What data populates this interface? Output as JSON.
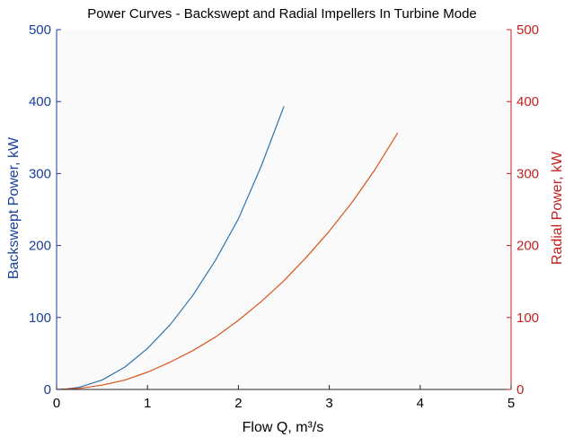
{
  "chart_data": {
    "type": "line",
    "title": "Power Curves - Backswept and Radial Impellers In Turbine Mode",
    "xlabel": "Flow Q, m³/s",
    "ylabel_left": "Backswept Power, kW",
    "ylabel_right": "Radial Power, kW",
    "xlim": [
      0,
      5
    ],
    "ylim_left": [
      0,
      500
    ],
    "ylim_right": [
      0,
      500
    ],
    "x_ticks": [
      "0",
      "1",
      "2",
      "3",
      "4",
      "5"
    ],
    "y_ticks_left": [
      "0",
      "100",
      "200",
      "300",
      "400",
      "500"
    ],
    "y_ticks_right": [
      "0",
      "100",
      "200",
      "300",
      "400",
      "500"
    ],
    "grid": false,
    "series": [
      {
        "axis": "left",
        "color": "#2f73ad",
        "x": [
          0,
          0.1,
          0.25,
          0.5,
          0.75,
          1.0,
          1.25,
          1.5,
          1.75,
          2.0,
          2.25,
          2.5
        ],
        "y": [
          0,
          0.5,
          3,
          13,
          31,
          57,
          90,
          131,
          180,
          237,
          310,
          393
        ]
      },
      {
        "axis": "right",
        "color": "#d9541d",
        "x": [
          0,
          0.25,
          0.5,
          0.75,
          1.0,
          1.25,
          1.5,
          1.75,
          2.0,
          2.25,
          2.5,
          2.75,
          3.0,
          3.25,
          3.5,
          3.75
        ],
        "y": [
          0,
          1.5,
          6,
          13,
          24,
          38,
          54,
          73,
          96,
          122,
          151,
          184,
          220,
          260,
          305,
          356
        ]
      }
    ],
    "colors": {
      "left_axis": "#1a3e9c",
      "right_axis": "#c21f1f",
      "plot_background": "#fafafa",
      "axis_line": "#262626"
    }
  }
}
